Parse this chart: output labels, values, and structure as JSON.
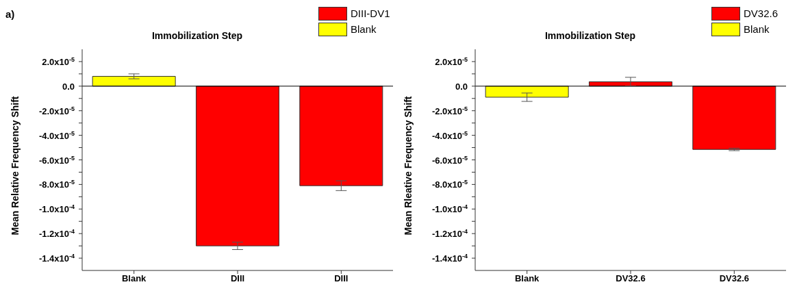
{
  "chart_data": [
    {
      "type": "bar",
      "title": "Immobilization Step",
      "ylabel": "Mean Relative Frequency Shift",
      "annotations": [
        "a)"
      ],
      "categories": [
        "Blank",
        "DIII",
        "DIII"
      ],
      "stacked": true,
      "legend": "top right",
      "ylim": [
        -0.00015,
        3e-05
      ],
      "yticks": [
        {
          "value": 2e-05,
          "label": "2.0x10$^{-5}$"
        },
        {
          "value": 0,
          "label": "0.0"
        },
        {
          "value": -2e-05,
          "label": "-2.0x10$^{-5}$"
        },
        {
          "value": -4e-05,
          "label": "-4.0x10$^{-5}$"
        },
        {
          "value": -6e-05,
          "label": "-6.0x10$^{-5}$"
        },
        {
          "value": -8e-05,
          "label": "-8.0x10$^{-5}$"
        },
        {
          "value": -0.0001,
          "label": "-1.0x10$^{-4}$"
        },
        {
          "value": -0.00012,
          "label": "-1.2x10$^{-4}$"
        },
        {
          "value": -0.00014,
          "label": "-1.4x10$^{-4}$"
        },
        {
          "value": 1e-05,
          "label": null
        },
        {
          "value": -1e-05,
          "label": null
        },
        {
          "value": -3e-05,
          "label": null
        },
        {
          "value": -5e-05,
          "label": null
        },
        {
          "value": -7e-05,
          "label": null
        },
        {
          "value": -9e-05,
          "label": null
        },
        {
          "value": -0.00011,
          "label": null
        },
        {
          "value": -0.00013,
          "label": null
        }
      ],
      "series": [
        {
          "name": "DIII-DV1",
          "color": "#ff0000",
          "values": [
            null,
            -0.00013,
            -8.1e-05
          ],
          "errors": [
            null,
            3e-06,
            4e-06
          ]
        },
        {
          "name": "Blank",
          "color": "#ffff00",
          "values": [
            8e-06,
            null,
            null
          ],
          "errors": [
            2e-06,
            null,
            null
          ]
        }
      ]
    },
    {
      "type": "bar",
      "title": "Immobilization Step",
      "ylabel": "Mean Rleative Frequency Shift",
      "categories": [
        "Blank",
        "DV32.6",
        "DV32.6"
      ],
      "stacked": true,
      "legend": "top right",
      "ylim": [
        -0.00015,
        3e-05
      ],
      "yticks": [
        {
          "value": 2e-05,
          "label": "2.0x10$^{-5}$"
        },
        {
          "value": 0,
          "label": "0.0"
        },
        {
          "value": -2e-05,
          "label": "-2.0x10$^{-5}$"
        },
        {
          "value": -4e-05,
          "label": "-4.0x10$^{-5}$"
        },
        {
          "value": -6e-05,
          "label": "-6.0x10$^{-5}$"
        },
        {
          "value": -8e-05,
          "label": "-8.0x10$^{-5}$"
        },
        {
          "value": -0.0001,
          "label": "-1.0x10$^{-4}$"
        },
        {
          "value": -0.00012,
          "label": "-1.2x10$^{-4}$"
        },
        {
          "value": -0.00014,
          "label": "-1.4x10$^{-4}$"
        },
        {
          "value": 1e-05,
          "label": null
        },
        {
          "value": -1e-05,
          "label": null
        },
        {
          "value": -3e-05,
          "label": null
        },
        {
          "value": -5e-05,
          "label": null
        },
        {
          "value": -7e-05,
          "label": null
        },
        {
          "value": -9e-05,
          "label": null
        },
        {
          "value": -0.00011,
          "label": null
        },
        {
          "value": -0.00013,
          "label": null
        }
      ],
      "series": [
        {
          "name": "DV32.6",
          "color": "#ff0000",
          "values": [
            null,
            3.6e-06,
            -5.15e-05
          ],
          "errors": [
            null,
            3.6e-06,
            1e-06
          ]
        },
        {
          "name": "Blank",
          "color": "#ffff00",
          "values": [
            -9e-06,
            null,
            null
          ],
          "errors": [
            3.4e-06,
            null,
            null
          ]
        }
      ]
    }
  ]
}
